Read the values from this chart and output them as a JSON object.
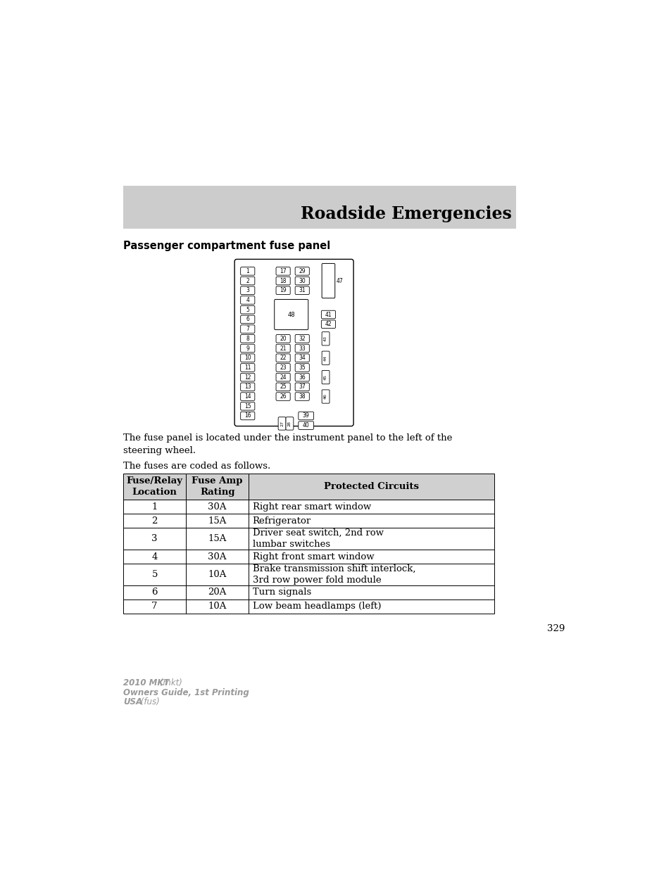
{
  "title": "Roadside Emergencies",
  "section_title": "Passenger compartment fuse panel",
  "body_text1": "The fuse panel is located under the instrument panel to the left of the\nsteering wheel.",
  "body_text2": "The fuses are coded as follows.",
  "table_headers": [
    "Fuse/Relay\nLocation",
    "Fuse Amp\nRating",
    "Protected Circuits"
  ],
  "table_rows": [
    [
      "1",
      "30A",
      "Right rear smart window"
    ],
    [
      "2",
      "15A",
      "Refrigerator"
    ],
    [
      "3",
      "15A",
      "Driver seat switch, 2nd row\nlumbar switches"
    ],
    [
      "4",
      "30A",
      "Right front smart window"
    ],
    [
      "5",
      "10A",
      "Brake transmission shift interlock,\n3rd row power fold module"
    ],
    [
      "6",
      "20A",
      "Turn signals"
    ],
    [
      "7",
      "10A",
      "Low beam headlamps (left)"
    ]
  ],
  "page_number": "329",
  "footer_bold1": "2010 MKT",
  "footer_italic1": " (mkt)",
  "footer_bold2": "Owners Guide, 1st Printing",
  "footer_bold3": "USA",
  "footer_italic3": " (fus)",
  "header_bg_color": "#cccccc",
  "table_header_bg": "#d0d0d0"
}
